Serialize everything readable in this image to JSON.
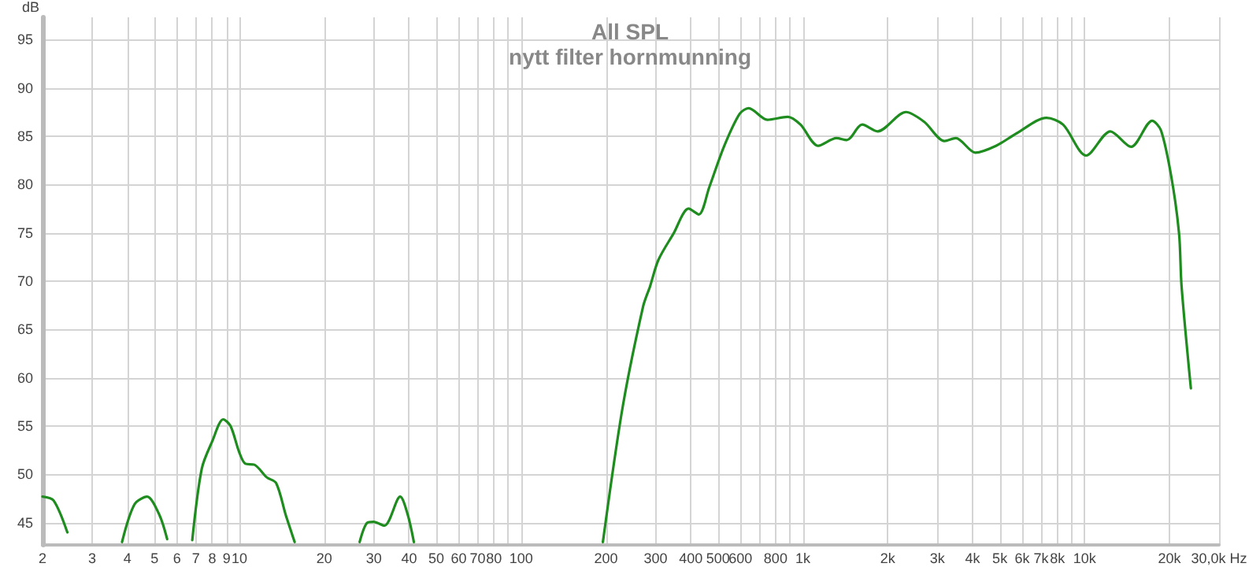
{
  "chart_data": {
    "type": "line",
    "title": "All SPL",
    "subtitle": "nytt filter hornmunning",
    "ylabel": "dB",
    "log": "x",
    "grid": true,
    "marker": "none",
    "line_style": "solid",
    "xlim": [
      2,
      30000
    ],
    "ylim": [
      42.7,
      97.3
    ],
    "xticks": [
      2,
      3,
      4,
      5,
      6,
      7,
      8,
      9,
      10,
      20,
      30,
      40,
      50,
      60,
      70,
      80,
      {
        "value": 90,
        "label": null
      },
      100,
      200,
      300,
      400,
      500,
      600,
      {
        "value": 700,
        "label": null
      },
      800,
      {
        "value": 900,
        "label": null
      },
      {
        "value": 1000,
        "label": "1k"
      },
      {
        "value": 2000,
        "label": "2k"
      },
      {
        "value": 3000,
        "label": "3k"
      },
      {
        "value": 4000,
        "label": "4k"
      },
      {
        "value": 5000,
        "label": "5k"
      },
      {
        "value": 6000,
        "label": "6k"
      },
      {
        "value": 7000,
        "label": "7k"
      },
      {
        "value": 8000,
        "label": "8k"
      },
      {
        "value": 9000,
        "label": null
      },
      {
        "value": 10000,
        "label": "10k"
      },
      {
        "value": 20000,
        "label": "20k"
      },
      {
        "value": 30000,
        "label": "30,0k Hz"
      }
    ],
    "yticks": [
      45,
      50,
      55,
      60,
      65,
      70,
      75,
      80,
      85,
      90,
      95
    ],
    "series": [
      {
        "color": "#1e8c1e",
        "x": [
          2,
          2.19,
          2.45,
          2.6,
          3.83,
          4.24,
          4.7,
          5.2,
          5.54,
          6.2,
          6.8,
          7.35,
          8.0,
          8.76,
          9.3,
          9.98,
          10.5,
          11.3,
          12.5,
          13.5,
          14.6,
          15.7,
          20,
          26.7,
          28.4,
          29.9,
          32.7,
          37.2,
          39.6,
          41.6,
          100,
          195,
          229,
          271,
          287,
          307,
          347,
          393,
          427,
          465,
          526,
          596,
          642,
          748,
          883,
          980,
          1134,
          1315,
          1431,
          1624,
          1841,
          2322,
          2691,
          3184,
          3490,
          4095,
          4843,
          5740,
          7322,
          8380,
          10130,
          12340,
          14620,
          17360,
          18660,
          20310,
          21640,
          22080,
          23830
        ],
        "values": [
          47.7,
          47.3,
          44,
          null,
          43,
          46.9,
          47.7,
          45.8,
          43.3,
          null,
          43.2,
          50.6,
          53.4,
          55.7,
          55.0,
          52.3,
          51.1,
          51.0,
          49.7,
          49.1,
          45.8,
          43,
          null,
          43,
          45.0,
          45.1,
          44.7,
          47.7,
          45.8,
          43,
          null,
          43,
          56.9,
          67.4,
          69.5,
          72.2,
          74.9,
          77.5,
          76.9,
          79.7,
          84.0,
          87.3,
          87.9,
          86.7,
          87.0,
          86.2,
          84.0,
          84.8,
          84.6,
          86.2,
          85.5,
          87.5,
          86.5,
          84.5,
          84.8,
          83.3,
          84.0,
          85.3,
          86.9,
          86.2,
          83.0,
          85.5,
          83.9,
          86.6,
          85.6,
          80.8,
          74.9,
          69.5,
          58.9
        ]
      }
    ]
  }
}
